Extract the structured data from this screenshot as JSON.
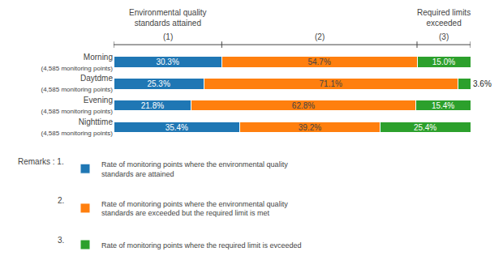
{
  "chart_data": {
    "type": "bar",
    "orientation": "horizontal",
    "stacked": true,
    "data_labels": true,
    "grid": false,
    "tick_labels": "y",
    "legend": "bottom left",
    "categories": [
      "Morning\n(4,585 monitoring points)",
      "Daytdme\n(4,585 monitoring points)",
      "Evening\n(4,585 monitoring points)",
      "Nighttime\n(4,585 monitoring points)"
    ],
    "series": [
      {
        "name": "Rate of monitoring points where the environmental quality\nstandards are attained",
        "values": [
          30.3,
          25.3,
          21.8,
          35.4
        ],
        "value_labels": [
          "30.3%",
          "25.3%",
          "21.8%",
          "35.4%"
        ]
      },
      {
        "name": "Rate of monitoring points where the environmental quality\nstandards are exceeded but the required limit is met",
        "values": [
          54.7,
          71.1,
          62.8,
          39.2
        ],
        "value_labels": [
          "54.7%",
          "71.1%",
          "62.8%",
          "39.2%"
        ]
      },
      {
        "name": "Rate of monitoring points where the required limit is evceeded",
        "values": [
          15.0,
          3.6,
          15.4,
          25.4
        ],
        "value_labels": [
          "15.0%",
          "3.6%",
          "15.4%",
          "25.4%"
        ]
      }
    ],
    "xlim": [
      0,
      100
    ],
    "annotations": [
      "Environmental quality\nstandards attained",
      "Required limits\nexceeded",
      "(1)",
      "(2)",
      "(3)",
      "Remarks : 1.",
      "2.",
      "3."
    ]
  }
}
